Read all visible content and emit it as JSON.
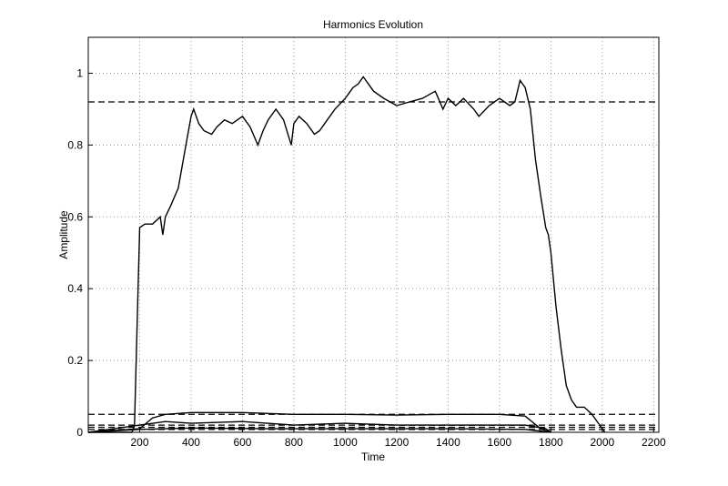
{
  "chart_data": {
    "type": "line",
    "title": "Harmonics Evolution",
    "xlabel": "Time",
    "ylabel": "Amplitude",
    "xlim": [
      0,
      2220
    ],
    "ylim": [
      0,
      1.1
    ],
    "xticks": [
      200,
      400,
      600,
      800,
      1000,
      1200,
      1400,
      1600,
      1800,
      2000,
      2200
    ],
    "yticks": [
      0,
      0.2,
      0.4,
      0.6,
      0.8,
      1
    ],
    "grid": true,
    "color": "#000000",
    "reference_lines": [
      0.92,
      0.05,
      0.02,
      0.014,
      0.008
    ],
    "series": [
      {
        "color": "#000000",
        "x": [
          0,
          100,
          170,
          180,
          190,
          200,
          220,
          250,
          280,
          290,
          300,
          320,
          350,
          380,
          400,
          410,
          430,
          450,
          480,
          500,
          530,
          560,
          600,
          630,
          660,
          680,
          700,
          730,
          760,
          790,
          800,
          820,
          850,
          880,
          900,
          930,
          960,
          1000,
          1030,
          1050,
          1070,
          1090,
          1110,
          1150,
          1200,
          1250,
          1300,
          1350,
          1380,
          1400,
          1430,
          1460,
          1500,
          1520,
          1560,
          1600,
          1640,
          1660,
          1680,
          1700,
          1720,
          1740,
          1760,
          1780,
          1790,
          1800,
          1820,
          1840,
          1860,
          1880,
          1900,
          1930,
          1960,
          1990,
          2010
        ],
        "values": [
          0,
          0,
          0,
          0.02,
          0.3,
          0.57,
          0.58,
          0.58,
          0.6,
          0.55,
          0.6,
          0.63,
          0.68,
          0.8,
          0.88,
          0.9,
          0.86,
          0.84,
          0.83,
          0.85,
          0.87,
          0.86,
          0.88,
          0.85,
          0.8,
          0.84,
          0.87,
          0.9,
          0.87,
          0.8,
          0.86,
          0.88,
          0.86,
          0.83,
          0.84,
          0.87,
          0.9,
          0.93,
          0.96,
          0.97,
          0.99,
          0.97,
          0.95,
          0.93,
          0.91,
          0.92,
          0.93,
          0.95,
          0.9,
          0.93,
          0.91,
          0.93,
          0.9,
          0.88,
          0.91,
          0.93,
          0.91,
          0.92,
          0.98,
          0.96,
          0.9,
          0.76,
          0.66,
          0.57,
          0.55,
          0.5,
          0.35,
          0.23,
          0.13,
          0.09,
          0.07,
          0.07,
          0.05,
          0.02,
          0
        ]
      },
      {
        "color": "#000000",
        "x": [
          0,
          200,
          250,
          300,
          400,
          600,
          800,
          1000,
          1200,
          1400,
          1600,
          1700,
          1760,
          1800
        ],
        "values": [
          0,
          0.01,
          0.04,
          0.05,
          0.055,
          0.055,
          0.05,
          0.05,
          0.048,
          0.05,
          0.05,
          0.045,
          0.01,
          0
        ]
      },
      {
        "color": "#000000",
        "x": [
          0,
          200,
          300,
          400,
          600,
          800,
          1000,
          1200,
          1400,
          1600,
          1700,
          1780,
          1800
        ],
        "values": [
          0,
          0.02,
          0.03,
          0.025,
          0.03,
          0.02,
          0.025,
          0.02,
          0.02,
          0.02,
          0.02,
          0.01,
          0
        ]
      },
      {
        "color": "#000000",
        "x": [
          0,
          200,
          400,
          700,
          1000,
          1400,
          1700,
          1800
        ],
        "values": [
          0,
          0.008,
          0.012,
          0.01,
          0.01,
          0.01,
          0.008,
          0
        ]
      }
    ]
  }
}
